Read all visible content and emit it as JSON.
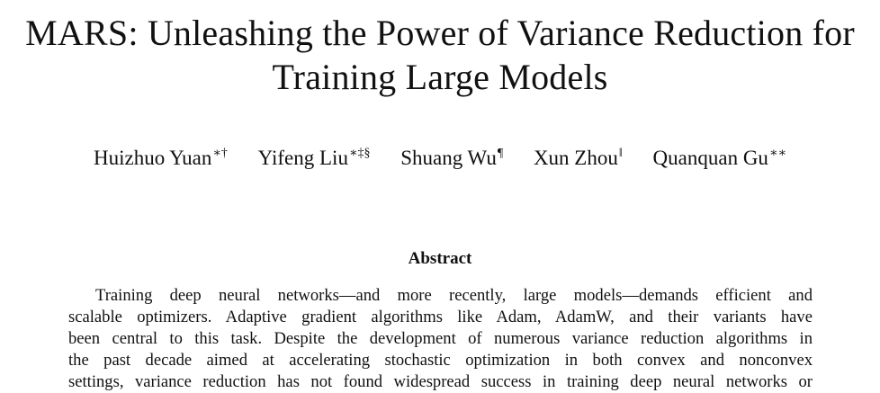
{
  "paper": {
    "title_lines": [
      "MARS: Unleashing the Power of Variance Reduction for",
      "Training Large Models"
    ],
    "authors": [
      {
        "name": "Huizhuo Yuan",
        "marks": "∗†"
      },
      {
        "name": "Yifeng Liu",
        "marks": "∗‡§"
      },
      {
        "name": "Shuang Wu",
        "marks": "¶"
      },
      {
        "name": "Xun Zhou",
        "marks": "‖"
      },
      {
        "name": "Quanquan Gu",
        "marks": "∗∗"
      }
    ],
    "abstract_heading": "Abstract",
    "abstract_lines": [
      "Training deep neural networks—and more recently, large models—demands efficient and",
      "scalable optimizers. Adaptive gradient algorithms like Adam, AdamW, and their variants have",
      "been central to this task. Despite the development of numerous variance reduction algorithms in",
      "the past decade aimed at accelerating stochastic optimization in both convex and nonconvex",
      "settings, variance reduction has not found widespread success in training deep neural networks or"
    ]
  }
}
